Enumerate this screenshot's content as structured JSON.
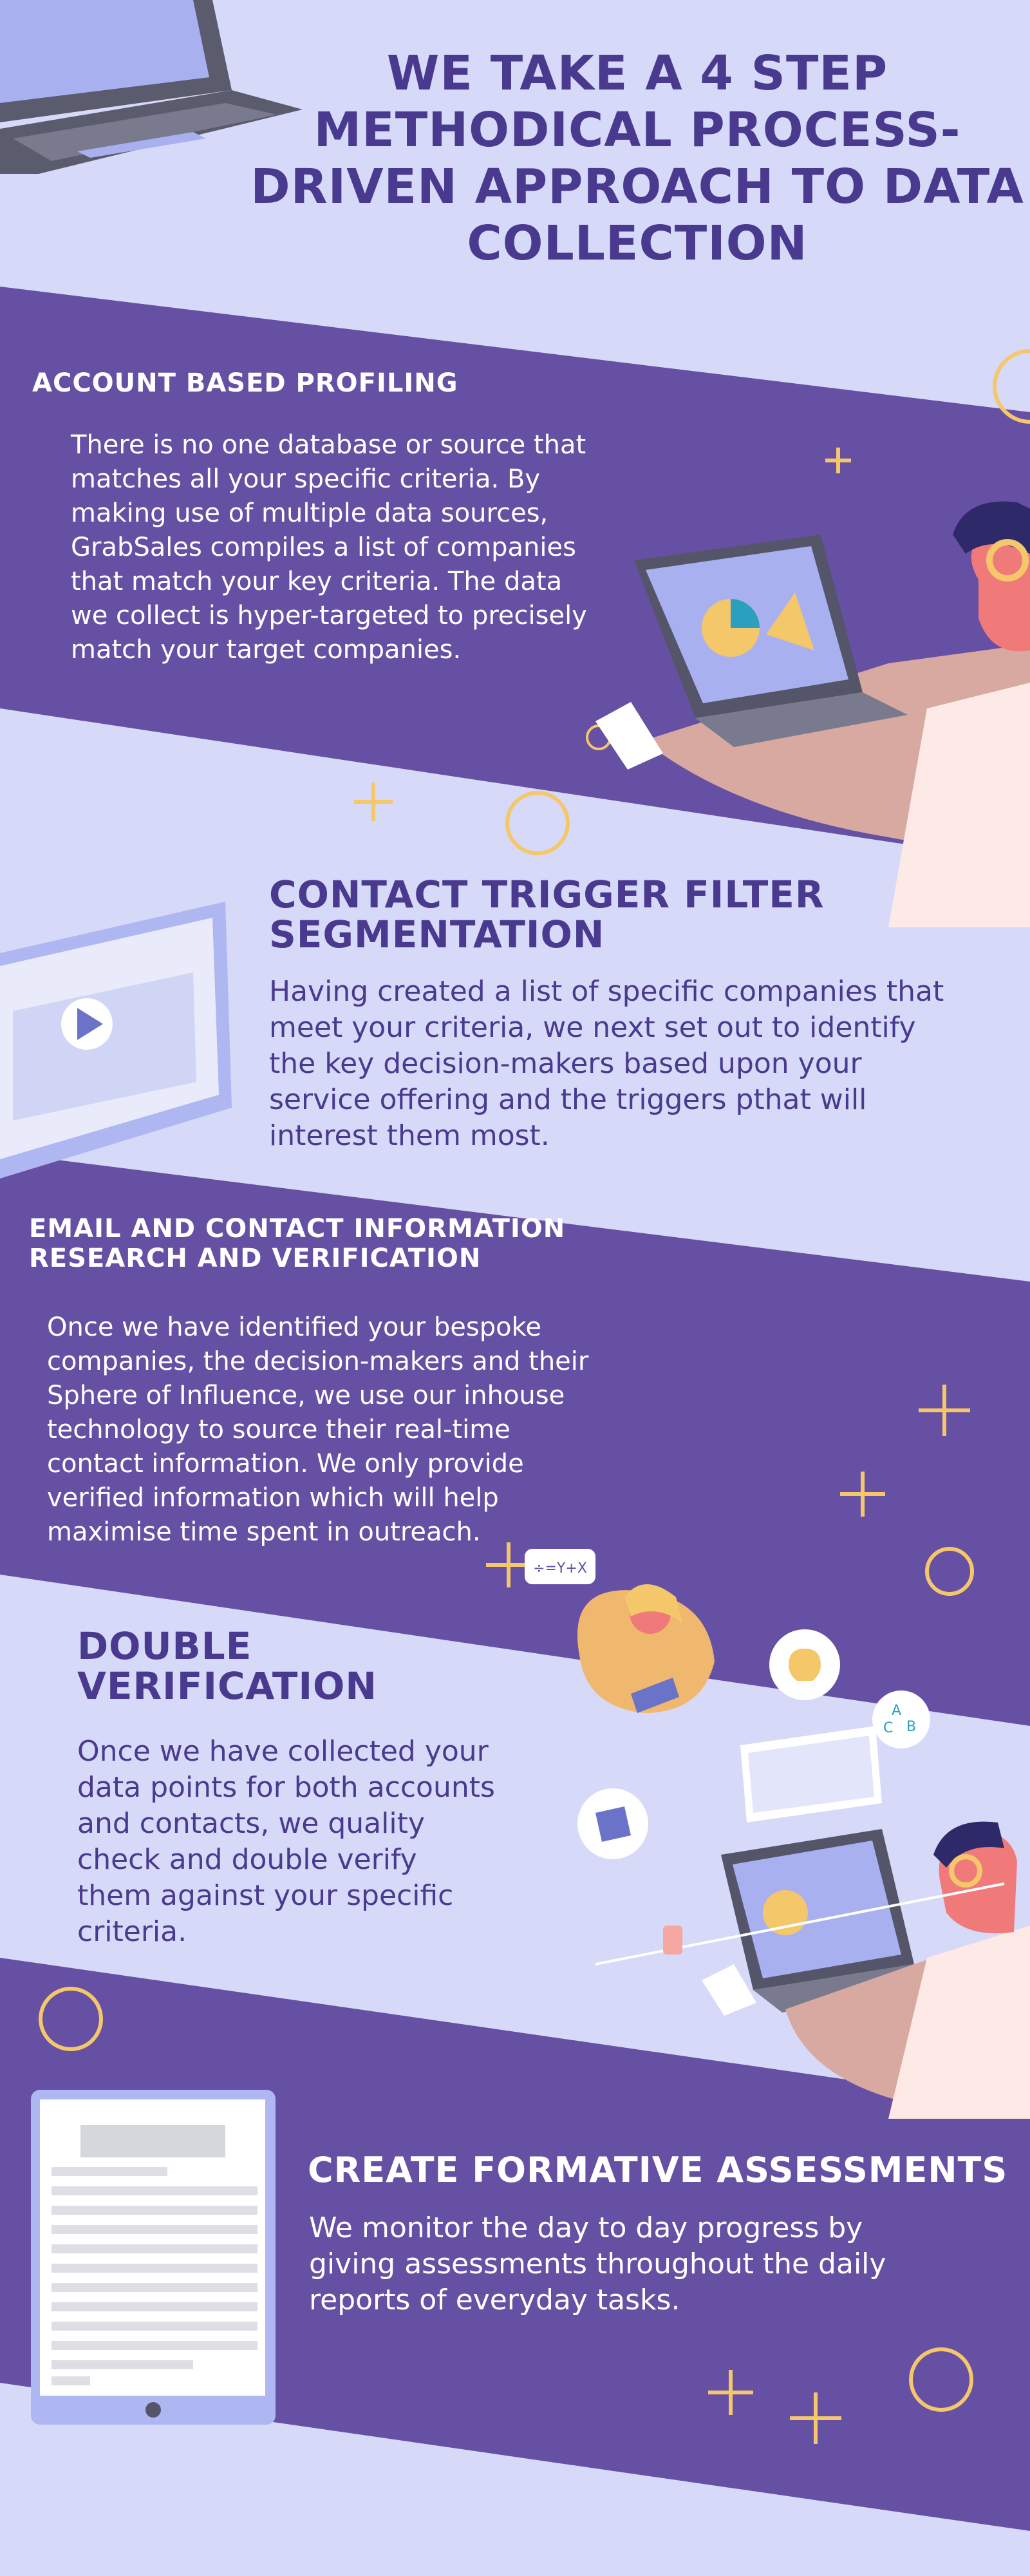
{
  "title": "WE TAKE A 4 STEP METHODICAL PROCESS-DRIVEN APPROACH TO DATA COLLECTION",
  "sections": [
    {
      "heading": "ACCOUNT BASED PROFILING",
      "body": "There is no one database or source that matches all your specific criteria. By making use of multiple data sources, GrabSales compiles a list of companies that match your key criteria. The data we collect is hyper-targeted to precisely match your target companies."
    },
    {
      "heading": "CONTACT TRIGGER FILTER SEGMENTATION",
      "body": "Having created a list of specific companies that meet your criteria, we next set out to identify the key decision-makers based upon your service offering and the triggers pthat will interest them most."
    },
    {
      "heading": "EMAIL AND CONTACT INFORMATION RESEARCH AND VERIFICATION",
      "body": "Once we have identified your bespoke companies, the decision-makers and their Sphere of Influence, we use our inhouse technology to source their real-time contact information. We only provide verified information which will help maximise time spent in outreach."
    },
    {
      "heading": "DOUBLE VERIFICATION",
      "body": "Once we have collected your data points for both accounts and contacts, we quality check and double verify them against your specific criteria."
    },
    {
      "heading": "CREATE FORMATIVE ASSESSMENTS",
      "body": "We monitor the day to day progress by giving assessments throughout the daily reports of everyday tasks."
    }
  ],
  "illustration_text": {
    "math_bubble": "÷=Y+X",
    "letter_a": "A",
    "letter_b": "B",
    "letter_c": "C"
  },
  "colors": {
    "background": "#d6d9f7",
    "band": "#6650a4",
    "title": "#4a3a8f",
    "accent": "#f5c76b",
    "laptop": "#5b5b6e"
  },
  "icons": [
    "laptop-icon",
    "headset-person-icon",
    "video-screen-icon",
    "teacher-illustration-icon",
    "lightbulb-icon",
    "tablet-document-icon"
  ]
}
